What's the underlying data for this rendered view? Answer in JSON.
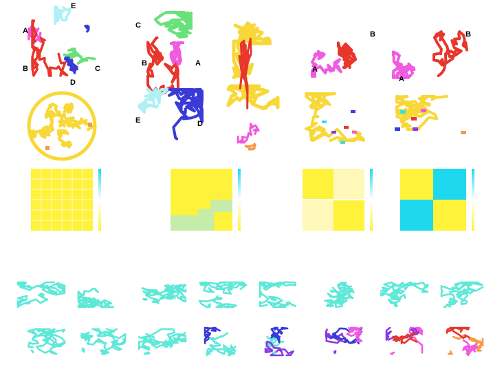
{
  "colors": {
    "red": "#e8362c",
    "magenta": "#f05ae0",
    "green": "#6ae07a",
    "cyan_light": "#aef0f4",
    "blue": "#3a3ad8",
    "yellow": "#f8d838",
    "orange": "#f49a4a",
    "teal": "#5ee8d8",
    "purple": "#8a3ae0",
    "map_yellow": "#fff23a",
    "map_cyan": "#1ed8f0",
    "map_white": "#ffffff"
  },
  "labels": {
    "p1": {
      "A": "A",
      "B": "B",
      "C": "C",
      "D": "D",
      "E": "E"
    },
    "p2": {
      "C": "C",
      "B": "B",
      "A": "A",
      "E": "E",
      "D": "D"
    },
    "p3": {
      "B": "B",
      "A": "A"
    },
    "p4": {
      "B": "B",
      "A": "A"
    }
  },
  "heatmaps": [
    {
      "name": "heatmap-1",
      "pattern": "uniform"
    },
    {
      "name": "heatmap-2",
      "pattern": "multi-block"
    },
    {
      "name": "heatmap-3",
      "pattern": "two-block-light"
    },
    {
      "name": "heatmap-4",
      "pattern": "two-block-strong"
    }
  ],
  "trajectory": {
    "rows": 2,
    "frames_per_row": 8,
    "color_stages": [
      0,
      0,
      0,
      0,
      0,
      0,
      0,
      0,
      0,
      0,
      0,
      1,
      2,
      3,
      4,
      5
    ]
  }
}
